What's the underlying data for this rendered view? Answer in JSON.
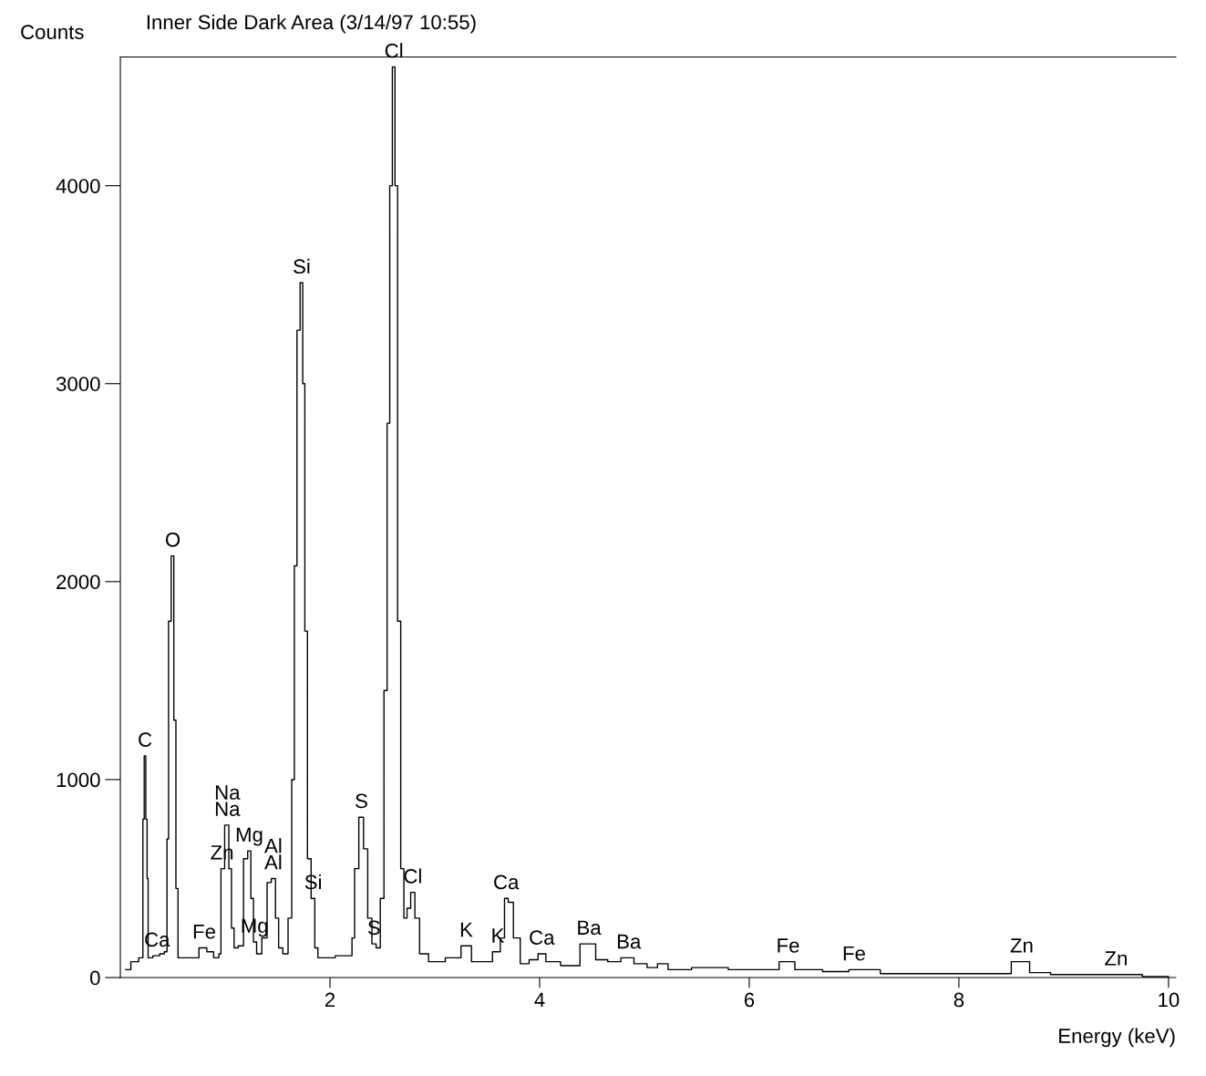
{
  "chart_data": {
    "type": "step",
    "title": "Inner Side Dark Area (3/14/97 10:55)",
    "xlabel": "Energy (keV)",
    "ylabel": "Counts",
    "x": [
      0.05,
      0.15,
      0.2,
      0.21,
      0.22,
      0.235,
      0.25,
      0.26,
      0.27,
      0.35,
      0.4,
      0.44,
      0.45,
      0.47,
      0.5,
      0.52,
      0.54,
      0.56,
      0.7,
      0.8,
      0.85,
      0.93,
      0.95,
      0.97,
      1.02,
      1.05,
      1.07,
      1.1,
      1.15,
      1.2,
      1.23,
      1.26,
      1.28,
      1.32,
      1.38,
      1.42,
      1.46,
      1.5,
      1.52,
      1.58,
      1.62,
      1.65,
      1.67,
      1.7,
      1.73,
      1.75,
      1.77,
      1.8,
      1.84,
      1.87,
      1.9,
      2.2,
      2.22,
      2.25,
      2.3,
      2.34,
      2.38,
      2.42,
      2.46,
      2.5,
      2.53,
      2.56,
      2.58,
      2.61,
      2.63,
      2.66,
      2.69,
      2.72,
      2.75,
      2.79,
      2.83,
      2.88,
      3.0,
      3.2,
      3.3,
      3.4,
      3.5,
      3.6,
      3.65,
      3.68,
      3.72,
      3.78,
      3.85,
      3.95,
      4.02,
      4.1,
      4.3,
      4.47,
      4.6,
      4.7,
      4.85,
      4.95,
      5.1,
      5.15,
      5.3,
      5.6,
      6.0,
      6.2,
      6.37,
      6.5,
      6.9,
      7.0,
      7.5,
      8.0,
      8.4,
      8.6,
      8.75,
      9.0,
      9.5,
      10.0
    ],
    "values": [
      40,
      80,
      100,
      100,
      800,
      1120,
      800,
      500,
      100,
      110,
      120,
      130,
      700,
      1800,
      2130,
      1300,
      450,
      100,
      100,
      150,
      130,
      100,
      120,
      550,
      770,
      550,
      250,
      150,
      160,
      600,
      640,
      400,
      180,
      120,
      200,
      480,
      500,
      300,
      150,
      120,
      300,
      1000,
      2080,
      3270,
      3510,
      3000,
      1750,
      600,
      400,
      150,
      100,
      110,
      200,
      550,
      810,
      650,
      300,
      170,
      150,
      400,
      1450,
      2800,
      4000,
      4600,
      4000,
      1800,
      550,
      300,
      350,
      430,
      300,
      120,
      80,
      100,
      160,
      80,
      80,
      130,
      200,
      400,
      380,
      200,
      70,
      90,
      120,
      80,
      60,
      170,
      90,
      80,
      100,
      70,
      50,
      70,
      40,
      50,
      40,
      40,
      80,
      40,
      30,
      40,
      20,
      20,
      20,
      80,
      25,
      15,
      15,
      5
    ],
    "color": "#000000",
    "xlim": [
      0,
      10.07
    ],
    "ylim": [
      0,
      4650
    ],
    "xticks": [
      2,
      4,
      6,
      8,
      10
    ],
    "yticks": [
      0,
      1000,
      2000,
      3000,
      4000
    ],
    "grid": false,
    "legend": false,
    "annotations": [
      {
        "text": "C",
        "x": 0.235,
        "y": 1120
      },
      {
        "text": "O",
        "x": 0.5,
        "y": 2130
      },
      {
        "text": "Zn",
        "x": 0.97,
        "y": 550
      },
      {
        "text": "Na",
        "x": 1.02,
        "y": 770
      },
      {
        "text": "Na",
        "x": 1.02,
        "y": 770
      },
      {
        "text": "Mg",
        "x": 1.23,
        "y": 640
      },
      {
        "text": "Mg",
        "x": 1.28,
        "y": 180
      },
      {
        "text": "Al",
        "x": 1.46,
        "y": 500
      },
      {
        "text": "Al",
        "x": 1.46,
        "y": 500
      },
      {
        "text": "Si",
        "x": 1.73,
        "y": 3510
      },
      {
        "text": "Si",
        "x": 1.84,
        "y": 400
      },
      {
        "text": "Cl",
        "x": 2.61,
        "y": 4600
      },
      {
        "text": "S",
        "x": 2.3,
        "y": 810
      },
      {
        "text": "S",
        "x": 2.42,
        "y": 170
      },
      {
        "text": "Cl",
        "x": 2.79,
        "y": 430
      },
      {
        "text": "Ca",
        "x": 3.68,
        "y": 400
      },
      {
        "text": "K",
        "x": 3.3,
        "y": 160
      },
      {
        "text": "K",
        "x": 3.6,
        "y": 130
      },
      {
        "text": "Ca",
        "x": 4.02,
        "y": 120
      },
      {
        "text": "Ba",
        "x": 4.47,
        "y": 170
      },
      {
        "text": "Ba",
        "x": 4.85,
        "y": 100
      },
      {
        "text": "Ca",
        "x": 0.35,
        "y": 110
      },
      {
        "text": "Fe",
        "x": 0.8,
        "y": 150
      },
      {
        "text": "Fe",
        "x": 6.37,
        "y": 80
      },
      {
        "text": "Fe",
        "x": 7.0,
        "y": 40
      },
      {
        "text": "Zn",
        "x": 8.6,
        "y": 80
      },
      {
        "text": "Zn",
        "x": 9.5,
        "y": 15
      }
    ]
  }
}
